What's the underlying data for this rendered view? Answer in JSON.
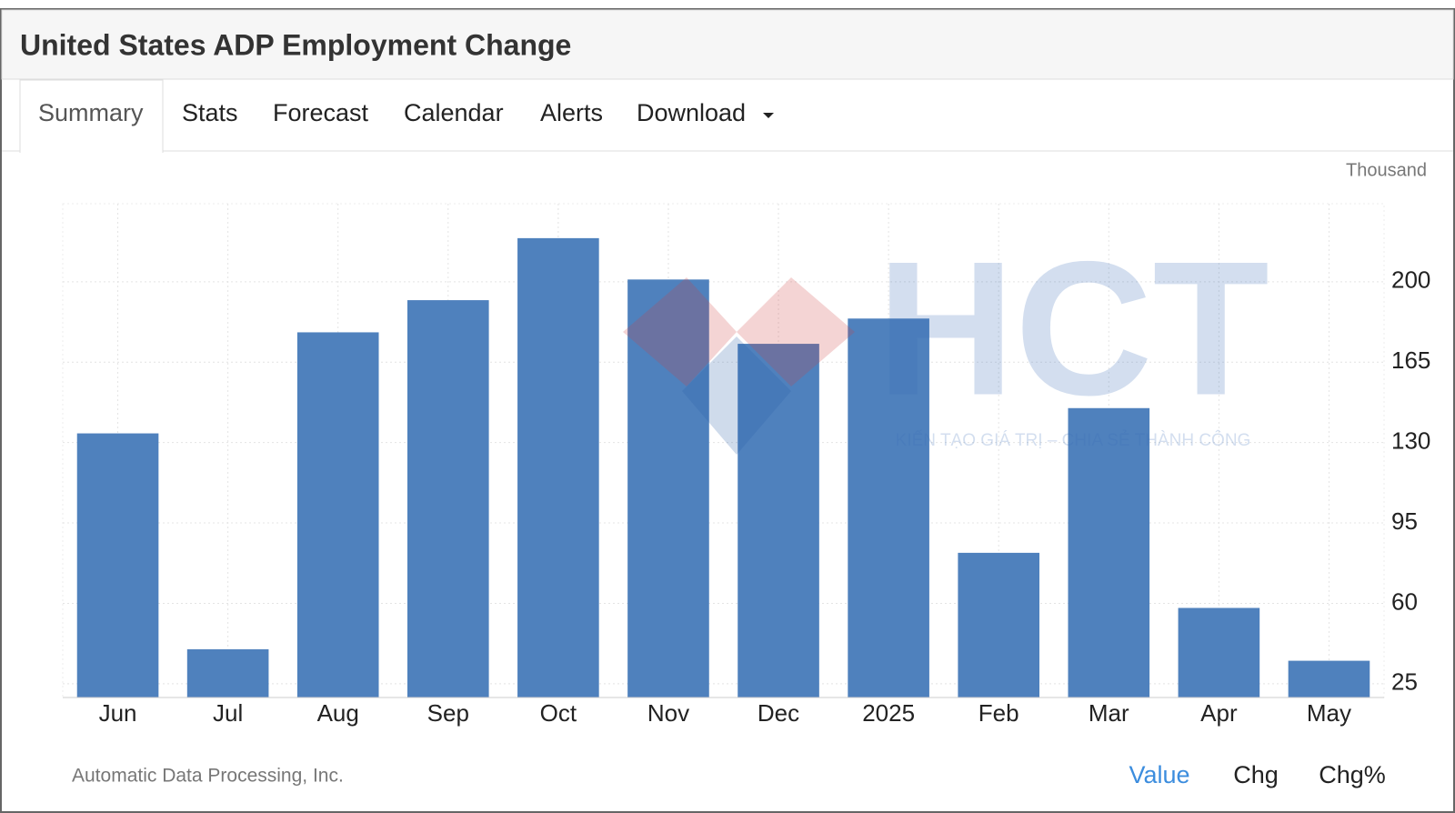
{
  "header": {
    "title": "United States ADP Employment Change"
  },
  "tabs": [
    "Summary",
    "Stats",
    "Forecast",
    "Calendar",
    "Alerts",
    "Download"
  ],
  "watermark": {
    "logo": "HCT",
    "slogan": "KIẾN TẠO GIÁ TRỊ – CHIA SẺ THÀNH CÔNG"
  },
  "chart_data": {
    "type": "bar",
    "unit": "Thousand",
    "categories": [
      "Jun",
      "Jul",
      "Aug",
      "Sep",
      "Oct",
      "Nov",
      "Dec",
      "2025",
      "Feb",
      "Mar",
      "Apr",
      "May"
    ],
    "values": [
      134,
      40,
      178,
      192,
      219,
      201,
      173,
      184,
      82,
      145,
      58,
      35
    ],
    "color": "#4f81bd",
    "ylim": [
      19,
      234
    ],
    "yticks": [
      25,
      60,
      95,
      130,
      165,
      200
    ],
    "grid": true
  },
  "footer": {
    "source": "Automatic Data Processing, Inc.",
    "toggles": [
      "Value",
      "Chg",
      "Chg%"
    ]
  }
}
